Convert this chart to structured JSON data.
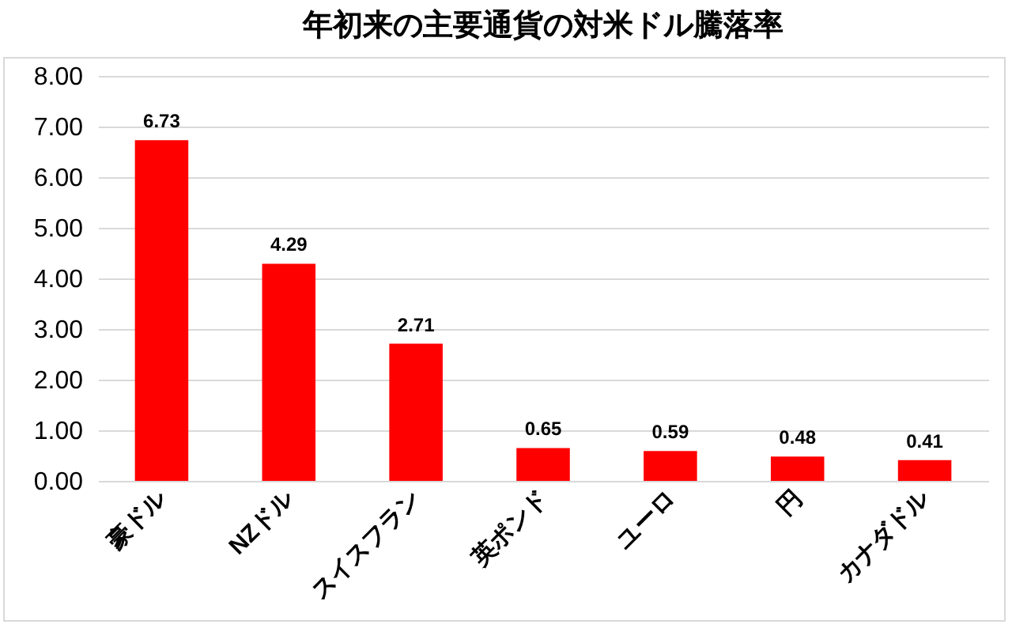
{
  "chart_data": {
    "type": "bar",
    "title": "年初来の主要通貨の対米ドル騰落率",
    "categories": [
      "豪ドル",
      "NZドル",
      "スイスフラン",
      "英ポンド",
      "ユーロ",
      "円",
      "カナダドル"
    ],
    "values": [
      6.73,
      4.29,
      2.71,
      0.65,
      0.59,
      0.48,
      0.41
    ],
    "color": "#ff0000",
    "ylim": [
      0,
      8
    ],
    "yticks": [
      {
        "value": 0,
        "label": "0.00"
      },
      {
        "value": 1,
        "label": "1.00"
      },
      {
        "value": 2,
        "label": "2.00"
      },
      {
        "value": 3,
        "label": "3.00"
      },
      {
        "value": 4,
        "label": "4.00"
      },
      {
        "value": 5,
        "label": "5.00"
      },
      {
        "value": 6,
        "label": "6.00"
      },
      {
        "value": 7,
        "label": "7.00"
      },
      {
        "value": 8,
        "label": "8.00"
      }
    ],
    "grid": "y",
    "data_labels": true
  }
}
